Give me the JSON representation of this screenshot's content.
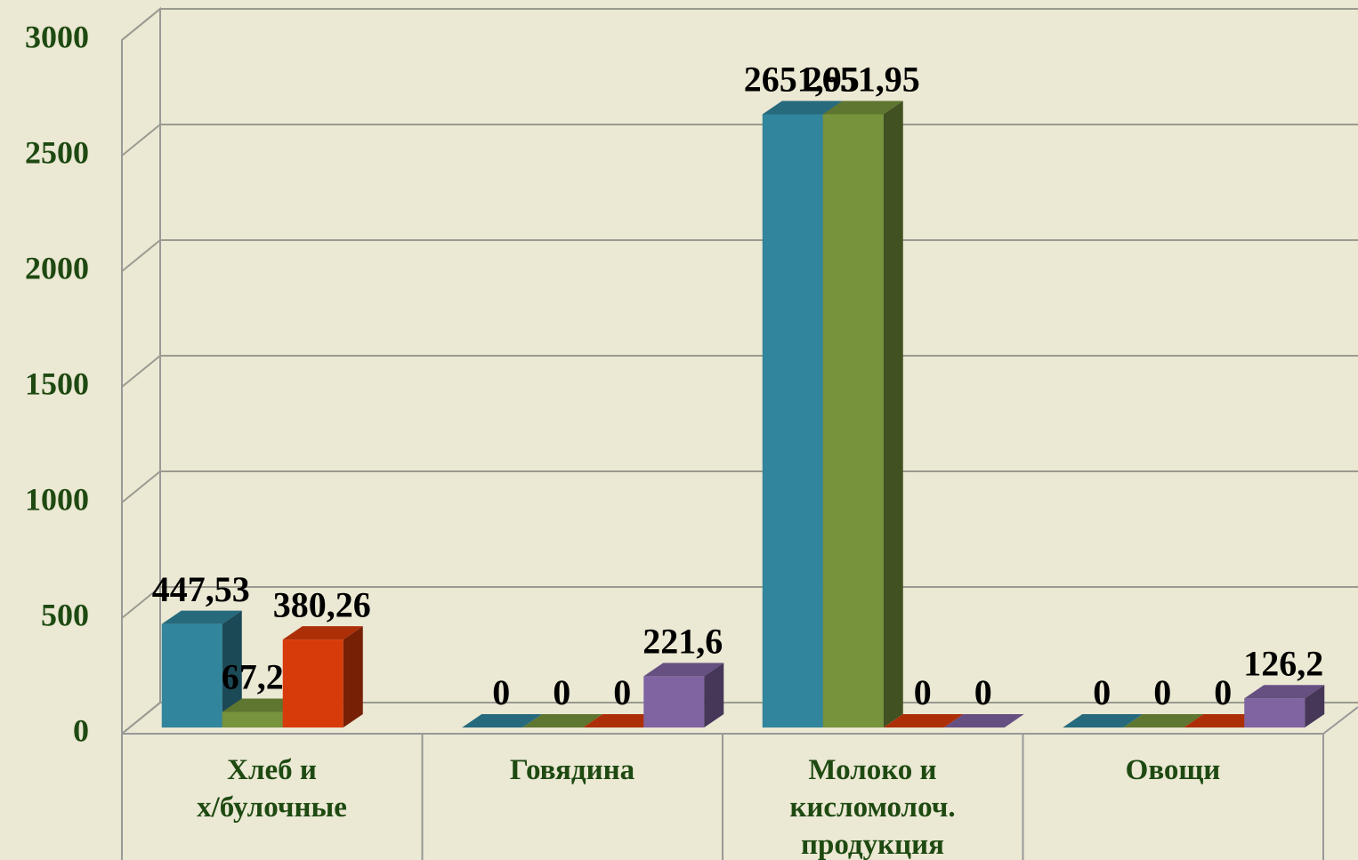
{
  "chart_data": {
    "type": "bar3d",
    "categories": [
      "Хлеб и\nх/булочные",
      "Говядина",
      "Молоко и\nкисломолоч.\nпродукция",
      "Овощи"
    ],
    "series": [
      {
        "color": "#31859c",
        "values": [
          447.53,
          0,
          2651.95,
          0
        ],
        "value_labels": [
          "447,53",
          "0",
          "2651,95",
          "0"
        ]
      },
      {
        "color": "#77933c",
        "values": [
          67.27,
          0,
          2651.95,
          0
        ],
        "value_labels": [
          "67,27",
          "0",
          "2651,95",
          "0"
        ]
      },
      {
        "color": "#d83b0a",
        "values": [
          380.26,
          0,
          0,
          0
        ],
        "value_labels": [
          "380,26",
          "0",
          "0",
          "0"
        ]
      },
      {
        "color": "#8064a2",
        "values": [
          null,
          221.6,
          0,
          126.2
        ],
        "value_labels": [
          null,
          "221,6",
          "0",
          "126,2"
        ]
      }
    ],
    "ylim": [
      0,
      3000
    ],
    "yticks": [
      0,
      500,
      1000,
      1500,
      2000,
      2500,
      3000
    ],
    "grid": true
  }
}
